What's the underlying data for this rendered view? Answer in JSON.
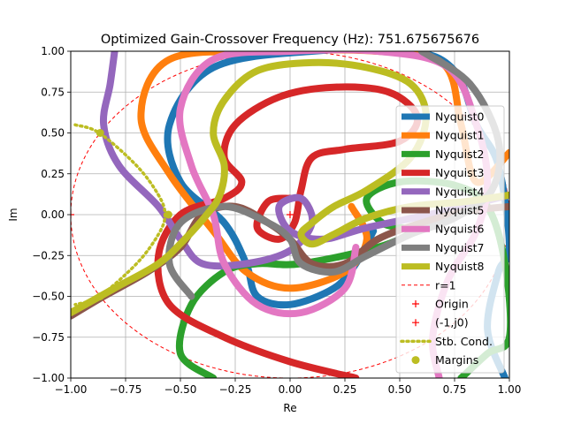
{
  "chart_data": {
    "type": "line",
    "title": "Optimized Gain-Crossover Frequency (Hz): 751.675675676",
    "xlabel": "Re",
    "ylabel": "Im",
    "xlim": [
      -1.0,
      1.0
    ],
    "ylim": [
      -1.0,
      1.0
    ],
    "grid": true,
    "legend_placement": "right",
    "x_ticks": [
      "−1.00",
      "−0.75",
      "−0.50",
      "−0.25",
      "0.00",
      "0.25",
      "0.50",
      "0.75",
      "1.00"
    ],
    "y_ticks": [
      "−1.00",
      "−0.75",
      "−0.50",
      "−0.25",
      "0.00",
      "0.25",
      "0.50",
      "0.75",
      "1.00"
    ],
    "x_tick_values": [
      -1.0,
      -0.75,
      -0.5,
      -0.25,
      0.0,
      0.25,
      0.5,
      0.75,
      1.0
    ],
    "y_tick_values": [
      -1.0,
      -0.75,
      -0.5,
      -0.25,
      0.0,
      0.25,
      0.5,
      0.75,
      1.0
    ],
    "series": [
      {
        "name": "Nyquist0",
        "color": "#1f77b4",
        "style": "solid",
        "points": [
          [
            0.98,
            -1.0
          ],
          [
            0.9,
            -0.7
          ],
          [
            0.95,
            -0.35
          ],
          [
            1.0,
            -0.2
          ],
          [
            0.95,
            0.3
          ],
          [
            0.85,
            0.55
          ],
          [
            0.75,
            0.88
          ],
          [
            0.55,
            1.0
          ],
          [
            0.1,
            1.0
          ],
          [
            -0.35,
            0.9
          ],
          [
            -0.55,
            0.55
          ],
          [
            -0.5,
            0.2
          ],
          [
            -0.3,
            -0.05
          ],
          [
            -0.2,
            -0.3
          ],
          [
            -0.15,
            -0.5
          ],
          [
            0.0,
            -0.55
          ],
          [
            0.2,
            -0.45
          ],
          [
            0.3,
            -0.3
          ],
          [
            0.38,
            -0.1
          ]
        ]
      },
      {
        "name": "Nyquist1",
        "color": "#ff7f0e",
        "style": "solid",
        "points": [
          [
            1.0,
            0.38
          ],
          [
            0.85,
            0.2
          ],
          [
            0.78,
            0.55
          ],
          [
            0.7,
            0.92
          ],
          [
            0.4,
            1.0
          ],
          [
            -0.1,
            1.0
          ],
          [
            -0.55,
            0.95
          ],
          [
            -0.68,
            0.6
          ],
          [
            -0.55,
            0.25
          ],
          [
            -0.35,
            -0.1
          ],
          [
            -0.2,
            -0.35
          ],
          [
            0.0,
            -0.45
          ],
          [
            0.25,
            -0.35
          ],
          [
            0.35,
            -0.15
          ],
          [
            0.28,
            0.05
          ]
        ]
      },
      {
        "name": "Nyquist2",
        "color": "#2ca02c",
        "style": "solid",
        "points": [
          [
            0.78,
            -1.0
          ],
          [
            0.9,
            -0.85
          ],
          [
            1.0,
            -0.75
          ],
          [
            0.98,
            -0.3
          ],
          [
            0.9,
            0.05
          ],
          [
            0.75,
            0.18
          ],
          [
            0.5,
            0.2
          ],
          [
            0.35,
            0.1
          ],
          [
            0.42,
            -0.05
          ],
          [
            0.55,
            -0.1
          ],
          [
            0.4,
            -0.2
          ],
          [
            0.05,
            -0.3
          ],
          [
            -0.15,
            -0.3
          ],
          [
            -0.3,
            -0.35
          ],
          [
            -0.45,
            -0.55
          ],
          [
            -0.5,
            -0.85
          ],
          [
            -0.35,
            -1.0
          ]
        ]
      },
      {
        "name": "Nyquist3",
        "color": "#d62728",
        "style": "solid",
        "points": [
          [
            0.3,
            -1.0
          ],
          [
            0.0,
            -0.9
          ],
          [
            -0.3,
            -0.75
          ],
          [
            -0.55,
            -0.55
          ],
          [
            -0.6,
            -0.25
          ],
          [
            -0.5,
            0.0
          ],
          [
            -0.3,
            0.1
          ],
          [
            -0.22,
            0.2
          ],
          [
            -0.3,
            0.35
          ],
          [
            -0.25,
            0.55
          ],
          [
            -0.05,
            0.72
          ],
          [
            0.2,
            0.78
          ],
          [
            0.45,
            0.75
          ],
          [
            0.58,
            0.6
          ],
          [
            0.5,
            0.45
          ],
          [
            0.25,
            0.4
          ],
          [
            0.1,
            0.35
          ],
          [
            0.05,
            0.15
          ],
          [
            0.02,
            -0.05
          ],
          [
            -0.05,
            -0.15
          ],
          [
            -0.15,
            -0.08
          ],
          [
            -0.1,
            0.08
          ],
          [
            0.0,
            0.1
          ]
        ]
      },
      {
        "name": "Nyquist4",
        "color": "#9467bd",
        "style": "solid",
        "points": [
          [
            -0.8,
            1.0
          ],
          [
            -0.82,
            0.8
          ],
          [
            -0.85,
            0.55
          ],
          [
            -0.78,
            0.3
          ],
          [
            -0.6,
            0.05
          ],
          [
            -0.5,
            -0.15
          ],
          [
            -0.4,
            -0.3
          ],
          [
            -0.2,
            -0.3
          ],
          [
            0.0,
            -0.22
          ],
          [
            0.1,
            -0.05
          ],
          [
            0.05,
            0.1
          ],
          [
            -0.05,
            0.05
          ],
          [
            0.0,
            -0.1
          ],
          [
            0.15,
            -0.15
          ],
          [
            0.35,
            -0.08
          ],
          [
            0.7,
            0.02
          ],
          [
            1.0,
            0.12
          ]
        ]
      },
      {
        "name": "Nyquist5",
        "color": "#8c564b",
        "style": "solid",
        "points": [
          [
            -1.0,
            -0.62
          ],
          [
            -0.85,
            -0.5
          ],
          [
            -0.65,
            -0.35
          ],
          [
            -0.5,
            -0.2
          ],
          [
            -0.4,
            0.0
          ],
          [
            -0.25,
            0.05
          ],
          [
            -0.1,
            -0.05
          ],
          [
            0.0,
            -0.15
          ],
          [
            0.1,
            -0.3
          ],
          [
            0.25,
            -0.3
          ],
          [
            0.4,
            -0.15
          ],
          [
            0.6,
            -0.05
          ],
          [
            0.8,
            0.02
          ],
          [
            1.0,
            0.05
          ]
        ]
      },
      {
        "name": "Nyquist6",
        "color": "#e377c2",
        "style": "solid",
        "points": [
          [
            0.68,
            -1.0
          ],
          [
            0.65,
            -0.75
          ],
          [
            0.72,
            -0.4
          ],
          [
            0.85,
            -0.1
          ],
          [
            0.9,
            0.2
          ],
          [
            0.85,
            0.55
          ],
          [
            0.72,
            0.9
          ],
          [
            0.4,
            1.0
          ],
          [
            0.0,
            1.0
          ],
          [
            -0.35,
            0.95
          ],
          [
            -0.5,
            0.65
          ],
          [
            -0.45,
            0.3
          ],
          [
            -0.35,
            0.0
          ],
          [
            -0.3,
            -0.3
          ],
          [
            -0.15,
            -0.55
          ],
          [
            0.05,
            -0.6
          ],
          [
            0.25,
            -0.45
          ],
          [
            0.3,
            -0.2
          ]
        ]
      },
      {
        "name": "Nyquist7",
        "color": "#7f7f7f",
        "style": "solid",
        "points": [
          [
            -0.45,
            -0.5
          ],
          [
            -0.55,
            -0.3
          ],
          [
            -0.5,
            -0.05
          ],
          [
            -0.3,
            0.05
          ],
          [
            -0.1,
            -0.05
          ],
          [
            0.0,
            -0.15
          ],
          [
            0.05,
            -0.3
          ],
          [
            0.2,
            -0.35
          ],
          [
            0.35,
            -0.25
          ],
          [
            0.55,
            -0.12
          ],
          [
            0.75,
            -0.02
          ],
          [
            0.92,
            0.15
          ],
          [
            0.95,
            0.45
          ],
          [
            0.82,
            0.8
          ],
          [
            0.6,
            1.0
          ]
        ]
      },
      {
        "name": "Nyquist8",
        "color": "#bcbd22",
        "style": "solid",
        "points": [
          [
            -1.0,
            -0.6
          ],
          [
            -0.8,
            -0.45
          ],
          [
            -0.6,
            -0.3
          ],
          [
            -0.48,
            -0.15
          ],
          [
            -0.38,
            0.0
          ],
          [
            -0.32,
            0.12
          ],
          [
            -0.3,
            0.3
          ],
          [
            -0.35,
            0.5
          ],
          [
            -0.3,
            0.7
          ],
          [
            -0.15,
            0.88
          ],
          [
            0.1,
            0.93
          ],
          [
            0.35,
            0.9
          ],
          [
            0.55,
            0.8
          ],
          [
            0.62,
            0.6
          ],
          [
            0.55,
            0.35
          ],
          [
            0.35,
            0.15
          ],
          [
            0.2,
            0.05
          ],
          [
            0.1,
            -0.05
          ],
          [
            0.05,
            -0.12
          ],
          [
            0.1,
            -0.18
          ],
          [
            0.2,
            -0.12
          ],
          [
            0.35,
            -0.02
          ],
          [
            0.55,
            0.05
          ],
          [
            0.8,
            0.08
          ],
          [
            1.0,
            0.12
          ]
        ]
      }
    ],
    "unit_circle": {
      "name": "r=1",
      "color": "#ff0000",
      "style": "dashed",
      "radius": 1
    },
    "origin": {
      "name": "Origin",
      "color": "#ff0000",
      "marker": "+",
      "x": 0,
      "y": 0
    },
    "critical_point": {
      "name": "(-1,j0)",
      "color": "#ff0000",
      "marker": "+",
      "x": -1,
      "y": 0
    },
    "stability_condition": {
      "name": "Stb. Cond.",
      "color": "#bcbd22",
      "style": "dotted",
      "points": [
        [
          -0.98,
          0.55
        ],
        [
          -0.87,
          0.5
        ],
        [
          -0.7,
          0.3
        ],
        [
          -0.6,
          0.12
        ],
        [
          -0.57,
          0.0
        ],
        [
          -0.6,
          -0.12
        ],
        [
          -0.7,
          -0.3
        ],
        [
          -0.87,
          -0.5
        ],
        [
          -0.98,
          -0.55
        ]
      ]
    },
    "margins": {
      "name": "Margins",
      "color": "#bcbd22",
      "marker": "o",
      "points": [
        [
          -0.866,
          0.5
        ],
        [
          -0.555,
          0.0
        ],
        [
          -0.866,
          -0.5
        ]
      ]
    }
  }
}
